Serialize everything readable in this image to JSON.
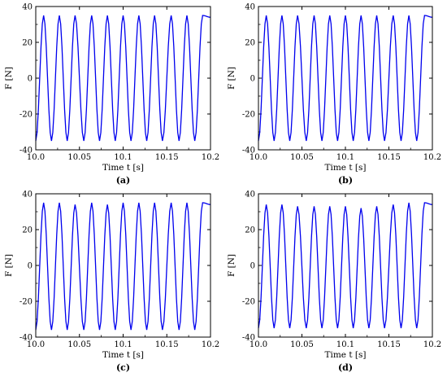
{
  "chart_data": [
    {
      "panel_label": "(a)",
      "type": "line",
      "xlabel": "Time t [s]",
      "ylabel": "F [N]",
      "xlim": [
        10.0,
        10.2
      ],
      "ylim": [
        -40,
        40
      ],
      "xticks": [
        10.0,
        10.05,
        10.1,
        10.15,
        10.2
      ],
      "xtick_labels": [
        "10.0",
        "10.05",
        "10.1",
        "10.15",
        "10.2"
      ],
      "yticks": [
        -40,
        -20,
        0,
        20,
        40
      ],
      "grid": false,
      "series": [
        {
          "color": "#0000ee",
          "amplitude": 35,
          "frequency_hz": 55,
          "x": [
            10.0,
            10.009,
            10.018,
            10.027,
            10.036,
            10.045,
            10.055,
            10.064,
            10.073,
            10.082,
            10.091,
            10.1,
            10.109,
            10.118,
            10.127,
            10.136,
            10.145,
            10.155,
            10.164,
            10.173,
            10.182,
            10.191,
            10.2
          ],
          "y": [
            -35,
            35,
            -35,
            35,
            -35,
            35,
            -35,
            35,
            -35,
            35,
            -35,
            35,
            -35,
            35,
            -35,
            35,
            -35,
            35,
            -35,
            35,
            -35,
            35,
            34
          ]
        }
      ]
    },
    {
      "panel_label": "(b)",
      "type": "line",
      "xlabel": "Time t [s]",
      "ylabel": "F [N]",
      "xlim": [
        10.0,
        10.2
      ],
      "ylim": [
        -40,
        40
      ],
      "xticks": [
        10.0,
        10.05,
        10.1,
        10.15,
        10.2
      ],
      "xtick_labels": [
        "10.0",
        "10.05",
        "10.1",
        "10.15",
        "10.2"
      ],
      "yticks": [
        -40,
        -20,
        0,
        20,
        40
      ],
      "grid": false,
      "series": [
        {
          "color": "#0000ee",
          "amplitude": 35,
          "frequency_hz": 55,
          "x": [
            10.0,
            10.009,
            10.018,
            10.027,
            10.036,
            10.045,
            10.055,
            10.064,
            10.073,
            10.082,
            10.091,
            10.1,
            10.109,
            10.118,
            10.127,
            10.136,
            10.145,
            10.155,
            10.164,
            10.173,
            10.182,
            10.191,
            10.2
          ],
          "y": [
            -35,
            35,
            -35,
            35,
            -35,
            35,
            -35,
            35,
            -35,
            35,
            -35,
            35,
            -35,
            35,
            -35,
            35,
            -35,
            35,
            -35,
            35,
            -35,
            35,
            34
          ]
        }
      ]
    },
    {
      "panel_label": "(c)",
      "type": "line",
      "xlabel": "Time t [s]",
      "ylabel": "F [N]",
      "xlim": [
        10.0,
        10.2
      ],
      "ylim": [
        -40,
        40
      ],
      "xticks": [
        10.0,
        10.05,
        10.1,
        10.15,
        10.2
      ],
      "xtick_labels": [
        "10.0",
        "10.05",
        "10.1",
        "10.15",
        "10.2"
      ],
      "yticks": [
        -40,
        -20,
        0,
        20,
        40
      ],
      "grid": false,
      "series": [
        {
          "color": "#0000ee",
          "amplitude": 35,
          "frequency_hz": 55,
          "x": [
            10.0,
            10.009,
            10.018,
            10.027,
            10.036,
            10.045,
            10.055,
            10.064,
            10.073,
            10.082,
            10.091,
            10.1,
            10.109,
            10.118,
            10.127,
            10.136,
            10.145,
            10.155,
            10.164,
            10.173,
            10.182,
            10.191,
            10.2
          ],
          "y": [
            -36,
            35,
            -36,
            35,
            -36,
            34,
            -36,
            35,
            -36,
            34,
            -36,
            35,
            -36,
            35,
            -36,
            35,
            -36,
            35,
            -36,
            35,
            -36,
            35,
            34
          ]
        }
      ]
    },
    {
      "panel_label": "(d)",
      "type": "line",
      "xlabel": "Time t [s]",
      "ylabel": "F [N]",
      "xlim": [
        10.0,
        10.2
      ],
      "ylim": [
        -40,
        40
      ],
      "xticks": [
        10.0,
        10.05,
        10.1,
        10.15,
        10.2
      ],
      "xtick_labels": [
        "10.0",
        "10.05",
        "10.1",
        "10.15",
        "10.2"
      ],
      "yticks": [
        -40,
        -20,
        0,
        20,
        40
      ],
      "grid": false,
      "series": [
        {
          "color": "#0000ee",
          "amplitude": 34,
          "frequency_hz": 55,
          "x": [
            10.0,
            10.009,
            10.018,
            10.027,
            10.036,
            10.045,
            10.055,
            10.064,
            10.073,
            10.082,
            10.091,
            10.1,
            10.109,
            10.118,
            10.127,
            10.136,
            10.145,
            10.155,
            10.164,
            10.173,
            10.182,
            10.191,
            10.2
          ],
          "y": [
            -35,
            34,
            -35,
            34,
            -35,
            33,
            -35,
            33,
            -35,
            33,
            -35,
            33,
            -35,
            32,
            -35,
            33,
            -35,
            34,
            -35,
            35,
            -35,
            35,
            34
          ]
        }
      ]
    }
  ]
}
